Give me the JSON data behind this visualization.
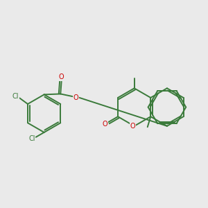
{
  "background_color": "#eaeaea",
  "bond_color": "#3a7a3a",
  "bond_lw": 1.4,
  "O_color": "#cc0000",
  "Cl_color": "#3a7a3a",
  "font_size": 7.0,
  "figsize": [
    3.0,
    3.0
  ],
  "dpi": 100,
  "xlim": [
    -3.2,
    3.4
  ],
  "ylim": [
    -2.0,
    2.0
  ]
}
